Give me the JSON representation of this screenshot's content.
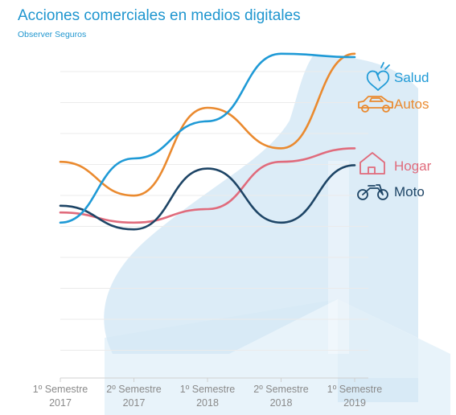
{
  "chart_data": {
    "type": "line",
    "title": "Acciones comerciales en medios digitales",
    "subtitle": "Observer Seguros",
    "x_categories": [
      [
        "1º Semestre",
        "2017"
      ],
      [
        "2º Semestre",
        "2017"
      ],
      [
        "1º Semestre",
        "2018"
      ],
      [
        "2º Semestre",
        "2018"
      ],
      [
        "1º Semestre",
        "2019"
      ]
    ],
    "ylim": [
      0,
      100
    ],
    "grid": true,
    "y_ticks_shown": false,
    "legend_placement": "right",
    "series": [
      {
        "name": "Salud",
        "color": "#1f9ad6",
        "icon": "heart-icon",
        "values": [
          46,
          65,
          76,
          96,
          95
        ]
      },
      {
        "name": "Autos",
        "color": "#ea8a2f",
        "icon": "car-icon",
        "values": [
          64,
          54,
          80,
          68,
          96
        ]
      },
      {
        "name": "Hogar",
        "color": "#e06b7c",
        "icon": "house-icon",
        "values": [
          49,
          46,
          50,
          64,
          68
        ]
      },
      {
        "name": "Moto",
        "color": "#1e4566",
        "icon": "motorcycle-icon",
        "values": [
          51,
          44,
          62,
          46,
          63
        ]
      }
    ]
  }
}
